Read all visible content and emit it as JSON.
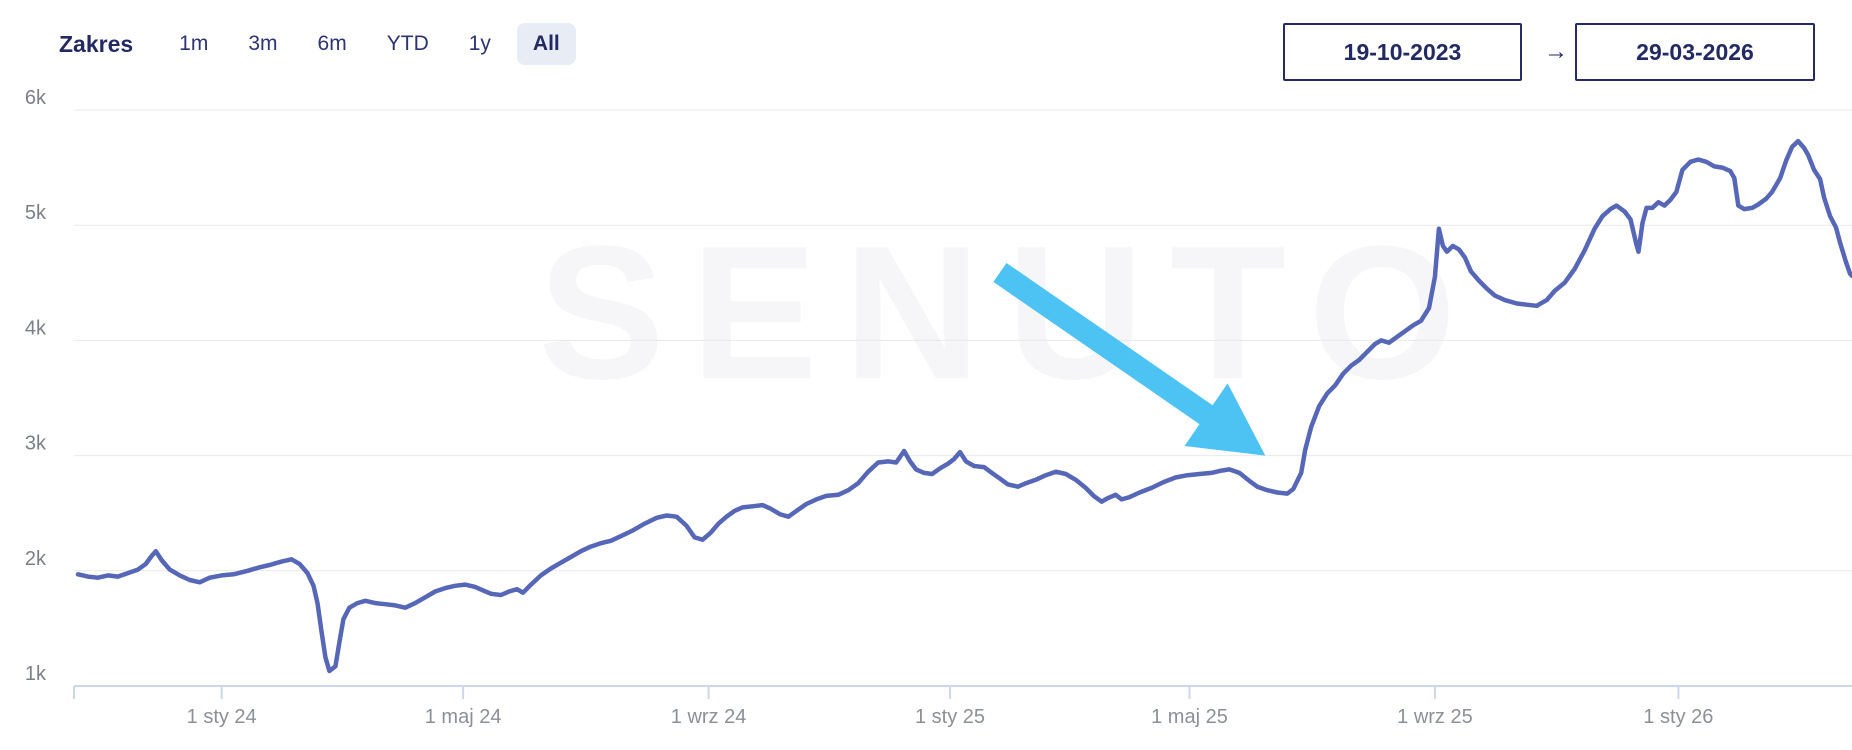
{
  "range_selector": {
    "label": "Zakres",
    "options": [
      {
        "label": "1m",
        "active": false
      },
      {
        "label": "3m",
        "active": false
      },
      {
        "label": "6m",
        "active": false
      },
      {
        "label": "YTD",
        "active": false
      },
      {
        "label": "1y",
        "active": false
      },
      {
        "label": "All",
        "active": true
      }
    ]
  },
  "date_range": {
    "from": "19-10-2023",
    "separator": "→",
    "to": "29-03-2026"
  },
  "watermark": "SENUTO",
  "colors": {
    "navy": "#232a63",
    "line": "#5767b8",
    "arrow": "#4dc3f3",
    "grid": "#e9e9e9",
    "axis": "#ccd7eb",
    "y_label": "#7a7f88",
    "x_label": "#8b9097",
    "chip_bg": "#e8ecf4",
    "watermark": "#f6f6f8"
  },
  "chart_data": {
    "type": "line",
    "x_start_date": "19-10-2023",
    "x_end_date": "29-03-2026",
    "x_span_days": 891,
    "y_axis": {
      "min": 1000,
      "max": 6000,
      "grid": true
    },
    "y_ticks": [
      {
        "label": "6k",
        "value": 6000
      },
      {
        "label": "5k",
        "value": 5000
      },
      {
        "label": "4k",
        "value": 4000
      },
      {
        "label": "3k",
        "value": 3000
      },
      {
        "label": "2k",
        "value": 2000
      },
      {
        "label": "1k",
        "value": 1000
      }
    ],
    "x_ticks": [
      {
        "label": "1 sty 24",
        "day": 74
      },
      {
        "label": "1 maj 24",
        "day": 195
      },
      {
        "label": "1 wrz 24",
        "day": 318
      },
      {
        "label": "1 sty 25",
        "day": 439
      },
      {
        "label": "1 maj 25",
        "day": 559
      },
      {
        "label": "1 wrz 25",
        "day": 682
      },
      {
        "label": "1 sty 26",
        "day": 804
      }
    ],
    "annotation_arrow": {
      "from": {
        "day": 464,
        "value": 4590
      },
      "to": {
        "day": 597,
        "value": 3000
      }
    },
    "points": [
      [
        2,
        1970
      ],
      [
        7,
        1950
      ],
      [
        12,
        1940
      ],
      [
        17,
        1960
      ],
      [
        22,
        1950
      ],
      [
        27,
        1980
      ],
      [
        32,
        2010
      ],
      [
        36,
        2060
      ],
      [
        39,
        2130
      ],
      [
        41,
        2170
      ],
      [
        44,
        2090
      ],
      [
        48,
        2010
      ],
      [
        53,
        1960
      ],
      [
        58,
        1920
      ],
      [
        63,
        1900
      ],
      [
        68,
        1940
      ],
      [
        74,
        1960
      ],
      [
        80,
        1970
      ],
      [
        87,
        2000
      ],
      [
        93,
        2030
      ],
      [
        98,
        2050
      ],
      [
        104,
        2080
      ],
      [
        109,
        2100
      ],
      [
        113,
        2060
      ],
      [
        117,
        1980
      ],
      [
        120,
        1870
      ],
      [
        122,
        1720
      ],
      [
        124,
        1480
      ],
      [
        126,
        1250
      ],
      [
        128,
        1130
      ],
      [
        131,
        1170
      ],
      [
        133,
        1380
      ],
      [
        135,
        1580
      ],
      [
        138,
        1680
      ],
      [
        142,
        1720
      ],
      [
        146,
        1740
      ],
      [
        151,
        1720
      ],
      [
        156,
        1710
      ],
      [
        161,
        1700
      ],
      [
        166,
        1680
      ],
      [
        171,
        1720
      ],
      [
        176,
        1770
      ],
      [
        181,
        1820
      ],
      [
        186,
        1850
      ],
      [
        191,
        1870
      ],
      [
        196,
        1880
      ],
      [
        201,
        1860
      ],
      [
        205,
        1830
      ],
      [
        209,
        1800
      ],
      [
        214,
        1790
      ],
      [
        218,
        1820
      ],
      [
        222,
        1840
      ],
      [
        225,
        1810
      ],
      [
        229,
        1880
      ],
      [
        234,
        1960
      ],
      [
        239,
        2020
      ],
      [
        244,
        2070
      ],
      [
        249,
        2120
      ],
      [
        254,
        2170
      ],
      [
        259,
        2210
      ],
      [
        264,
        2240
      ],
      [
        269,
        2260
      ],
      [
        274,
        2300
      ],
      [
        280,
        2350
      ],
      [
        286,
        2410
      ],
      [
        292,
        2460
      ],
      [
        297,
        2480
      ],
      [
        302,
        2470
      ],
      [
        307,
        2390
      ],
      [
        311,
        2290
      ],
      [
        315,
        2270
      ],
      [
        319,
        2330
      ],
      [
        323,
        2410
      ],
      [
        327,
        2470
      ],
      [
        331,
        2520
      ],
      [
        335,
        2550
      ],
      [
        340,
        2560
      ],
      [
        345,
        2570
      ],
      [
        349,
        2540
      ],
      [
        354,
        2490
      ],
      [
        358,
        2470
      ],
      [
        362,
        2520
      ],
      [
        367,
        2580
      ],
      [
        372,
        2620
      ],
      [
        377,
        2650
      ],
      [
        383,
        2660
      ],
      [
        388,
        2700
      ],
      [
        393,
        2760
      ],
      [
        398,
        2860
      ],
      [
        403,
        2940
      ],
      [
        408,
        2950
      ],
      [
        412,
        2940
      ],
      [
        416,
        3040
      ],
      [
        419,
        2950
      ],
      [
        422,
        2880
      ],
      [
        426,
        2850
      ],
      [
        430,
        2840
      ],
      [
        434,
        2890
      ],
      [
        438,
        2930
      ],
      [
        441,
        2970
      ],
      [
        444,
        3030
      ],
      [
        447,
        2950
      ],
      [
        451,
        2910
      ],
      [
        456,
        2900
      ],
      [
        460,
        2850
      ],
      [
        464,
        2800
      ],
      [
        468,
        2750
      ],
      [
        473,
        2730
      ],
      [
        477,
        2760
      ],
      [
        482,
        2790
      ],
      [
        487,
        2830
      ],
      [
        492,
        2860
      ],
      [
        497,
        2840
      ],
      [
        502,
        2790
      ],
      [
        507,
        2720
      ],
      [
        511,
        2650
      ],
      [
        515,
        2600
      ],
      [
        518,
        2630
      ],
      [
        522,
        2660
      ],
      [
        525,
        2620
      ],
      [
        529,
        2640
      ],
      [
        534,
        2680
      ],
      [
        540,
        2720
      ],
      [
        546,
        2770
      ],
      [
        552,
        2810
      ],
      [
        558,
        2830
      ],
      [
        564,
        2840
      ],
      [
        570,
        2850
      ],
      [
        575,
        2870
      ],
      [
        579,
        2880
      ],
      [
        584,
        2850
      ],
      [
        589,
        2780
      ],
      [
        593,
        2730
      ],
      [
        598,
        2700
      ],
      [
        603,
        2680
      ],
      [
        608,
        2670
      ],
      [
        611,
        2710
      ],
      [
        615,
        2850
      ],
      [
        617,
        3050
      ],
      [
        620,
        3250
      ],
      [
        624,
        3430
      ],
      [
        628,
        3540
      ],
      [
        632,
        3610
      ],
      [
        636,
        3710
      ],
      [
        640,
        3780
      ],
      [
        644,
        3830
      ],
      [
        648,
        3900
      ],
      [
        652,
        3970
      ],
      [
        655,
        4000
      ],
      [
        659,
        3980
      ],
      [
        663,
        4030
      ],
      [
        667,
        4080
      ],
      [
        671,
        4130
      ],
      [
        675,
        4170
      ],
      [
        679,
        4280
      ],
      [
        682,
        4550
      ],
      [
        684,
        4970
      ],
      [
        686,
        4820
      ],
      [
        688,
        4770
      ],
      [
        691,
        4820
      ],
      [
        694,
        4790
      ],
      [
        697,
        4720
      ],
      [
        700,
        4600
      ],
      [
        704,
        4520
      ],
      [
        708,
        4450
      ],
      [
        712,
        4390
      ],
      [
        717,
        4350
      ],
      [
        723,
        4320
      ],
      [
        728,
        4310
      ],
      [
        733,
        4300
      ],
      [
        738,
        4350
      ],
      [
        742,
        4430
      ],
      [
        747,
        4500
      ],
      [
        752,
        4620
      ],
      [
        757,
        4780
      ],
      [
        762,
        4970
      ],
      [
        766,
        5080
      ],
      [
        770,
        5140
      ],
      [
        773,
        5170
      ],
      [
        777,
        5120
      ],
      [
        780,
        5050
      ],
      [
        783,
        4830
      ],
      [
        784,
        4770
      ],
      [
        786,
        5020
      ],
      [
        788,
        5150
      ],
      [
        791,
        5150
      ],
      [
        794,
        5200
      ],
      [
        797,
        5170
      ],
      [
        800,
        5220
      ],
      [
        803,
        5290
      ],
      [
        806,
        5480
      ],
      [
        810,
        5550
      ],
      [
        814,
        5570
      ],
      [
        818,
        5550
      ],
      [
        822,
        5510
      ],
      [
        826,
        5500
      ],
      [
        830,
        5470
      ],
      [
        832,
        5410
      ],
      [
        834,
        5170
      ],
      [
        837,
        5140
      ],
      [
        841,
        5150
      ],
      [
        844,
        5180
      ],
      [
        848,
        5230
      ],
      [
        851,
        5290
      ],
      [
        855,
        5410
      ],
      [
        858,
        5560
      ],
      [
        861,
        5680
      ],
      [
        864,
        5730
      ],
      [
        867,
        5670
      ],
      [
        869,
        5610
      ],
      [
        872,
        5480
      ],
      [
        875,
        5400
      ],
      [
        877,
        5240
      ],
      [
        880,
        5080
      ],
      [
        883,
        4980
      ],
      [
        885,
        4850
      ],
      [
        888,
        4680
      ],
      [
        890,
        4580
      ],
      [
        891,
        4560
      ]
    ]
  }
}
